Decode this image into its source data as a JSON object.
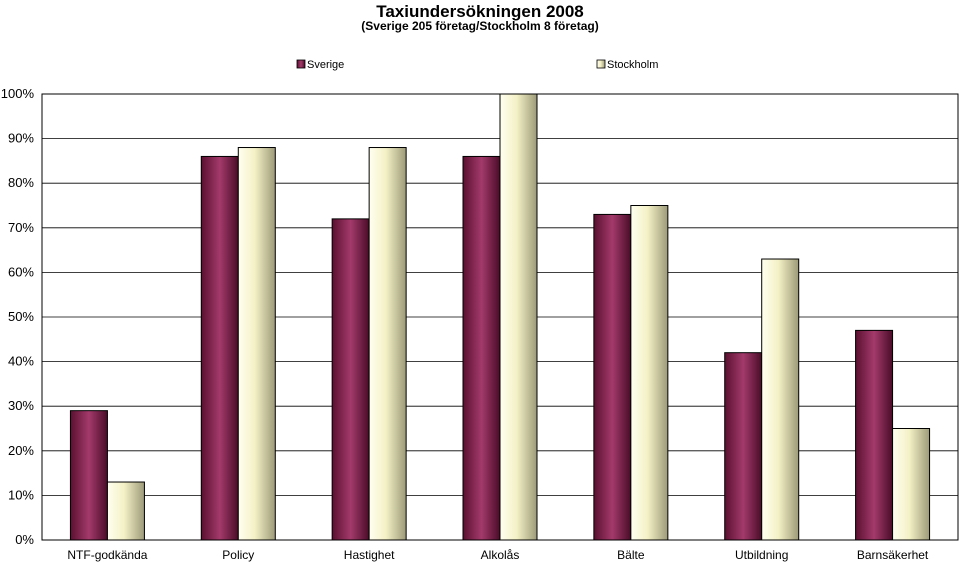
{
  "chart_data": {
    "type": "bar",
    "title": "Taxiundersökningen 2008",
    "subtitle": "(Sverige 205 företag/Stockholm 8 företag)",
    "categories": [
      "NTF-godkända",
      "Policy",
      "Hastighet",
      "Alkolås",
      "Bälte",
      "Utbildning",
      "Barnsäkerhet"
    ],
    "series": [
      {
        "name": "Sverige",
        "values": [
          29,
          86,
          72,
          86,
          73,
          42,
          47
        ],
        "color": "#7a1f4a"
      },
      {
        "name": "Stockholm",
        "values": [
          13,
          88,
          88,
          100,
          75,
          63,
          25
        ],
        "color": "#f3f0c4"
      }
    ],
    "ylim": [
      0,
      100
    ],
    "yticks": [
      "0%",
      "10%",
      "20%",
      "30%",
      "40%",
      "50%",
      "60%",
      "70%",
      "80%",
      "90%",
      "100%"
    ],
    "grid": true,
    "legend_position": "top"
  }
}
